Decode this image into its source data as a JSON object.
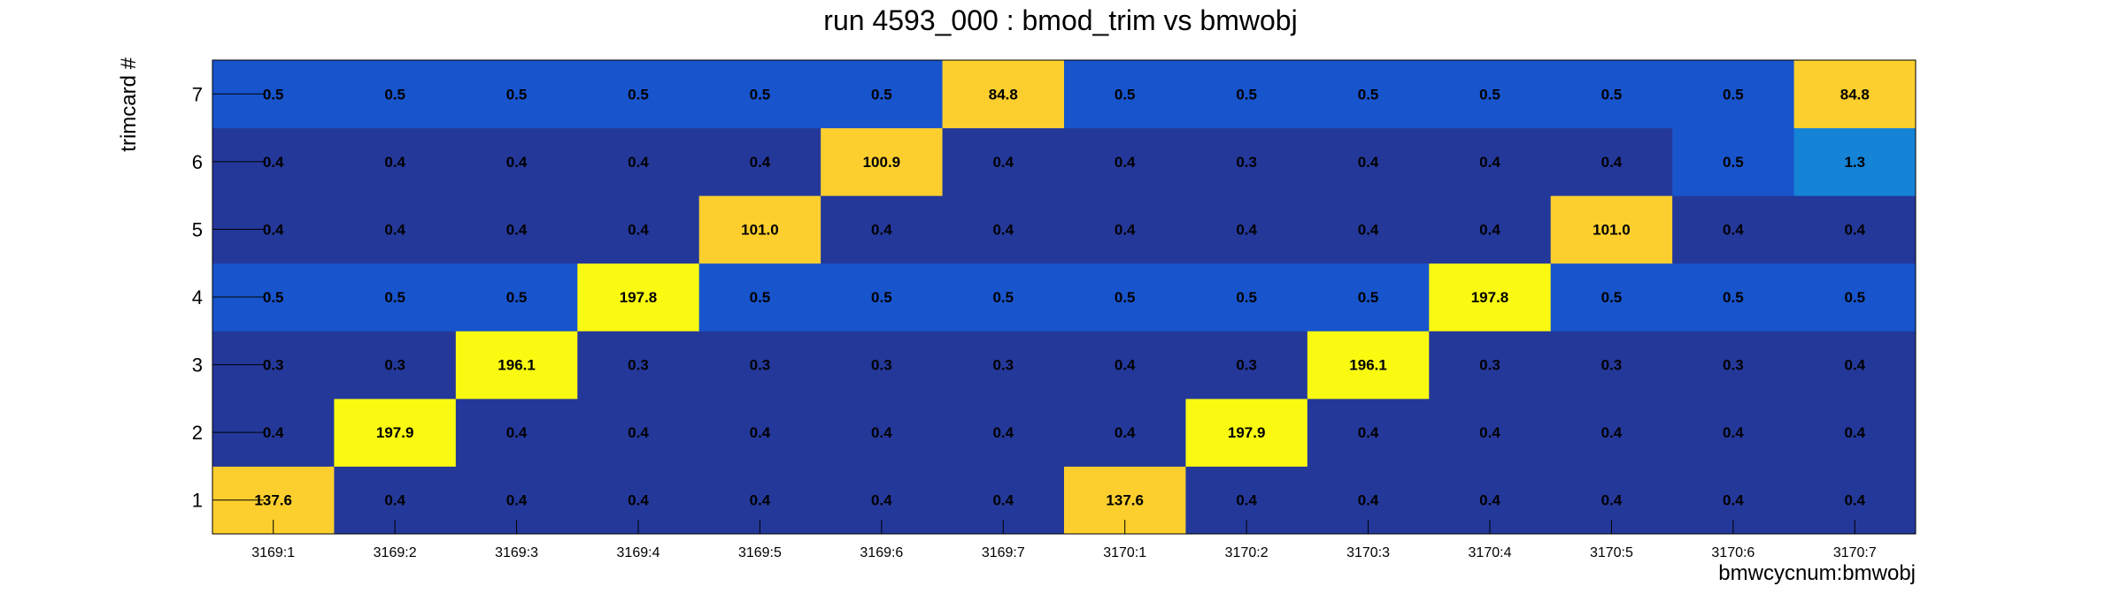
{
  "chart_data": {
    "type": "heatmap",
    "title": "run 4593_000 : bmod_trim vs bmwobj",
    "xlabel": "bmwcycnum:bmwobj",
    "ylabel": "trimcard #",
    "x_categories": [
      "3169:1",
      "3169:2",
      "3169:3",
      "3169:4",
      "3169:5",
      "3169:6",
      "3169:7",
      "3170:1",
      "3170:2",
      "3170:3",
      "3170:4",
      "3170:5",
      "3170:6",
      "3170:7"
    ],
    "y_categories": [
      "1",
      "2",
      "3",
      "4",
      "5",
      "6",
      "7"
    ],
    "values": [
      [
        "137.6",
        "0.4",
        "0.4",
        "0.4",
        "0.4",
        "0.4",
        "0.4",
        "137.6",
        "0.4",
        "0.4",
        "0.4",
        "0.4",
        "0.4",
        "0.4"
      ],
      [
        "0.4",
        "197.9",
        "0.4",
        "0.4",
        "0.4",
        "0.4",
        "0.4",
        "0.4",
        "197.9",
        "0.4",
        "0.4",
        "0.4",
        "0.4",
        "0.4"
      ],
      [
        "0.3",
        "0.3",
        "196.1",
        "0.3",
        "0.3",
        "0.3",
        "0.3",
        "0.4",
        "0.3",
        "196.1",
        "0.3",
        "0.3",
        "0.3",
        "0.4"
      ],
      [
        "0.5",
        "0.5",
        "0.5",
        "197.8",
        "0.5",
        "0.5",
        "0.5",
        "0.5",
        "0.5",
        "0.5",
        "197.8",
        "0.5",
        "0.5",
        "0.5"
      ],
      [
        "0.4",
        "0.4",
        "0.4",
        "0.4",
        "101.0",
        "0.4",
        "0.4",
        "0.4",
        "0.4",
        "0.4",
        "0.4",
        "101.0",
        "0.4",
        "0.4"
      ],
      [
        "0.4",
        "0.4",
        "0.4",
        "0.4",
        "0.4",
        "100.9",
        "0.4",
        "0.4",
        "0.3",
        "0.4",
        "0.4",
        "0.4",
        "0.5",
        "1.3"
      ],
      [
        "0.5",
        "0.5",
        "0.5",
        "0.5",
        "0.5",
        "0.5",
        "84.8",
        "0.5",
        "0.5",
        "0.5",
        "0.5",
        "0.5",
        "0.5",
        "84.8"
      ]
    ],
    "zlim": [
      0,
      200
    ],
    "colors": {
      "low": "#24389a",
      "low_mid": "#1854cc",
      "mid": "#1583d6",
      "high_mid": "#fccf2e",
      "high": "#f9f912"
    }
  }
}
